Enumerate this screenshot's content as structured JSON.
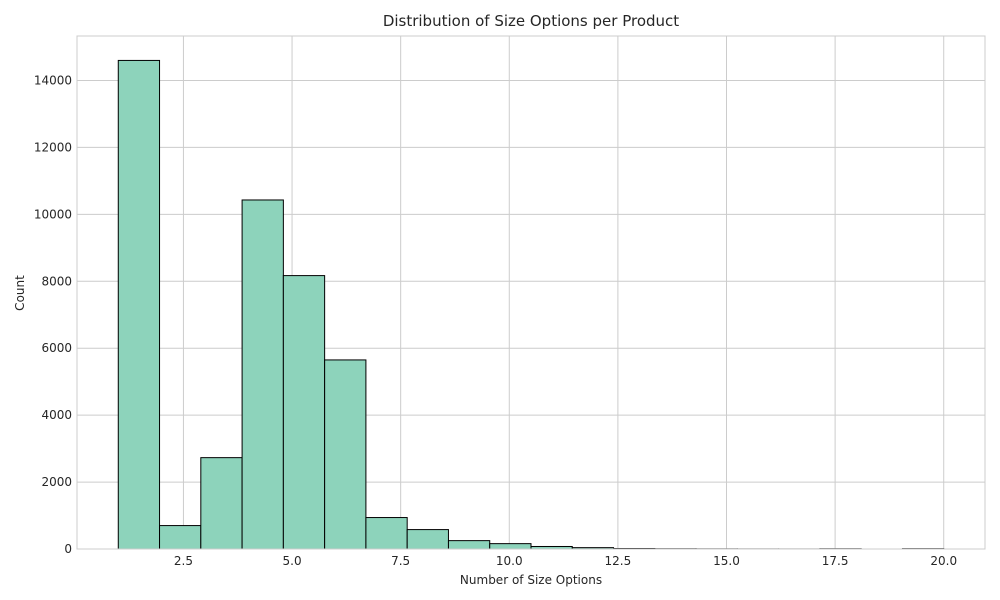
{
  "chart_data": {
    "type": "bar",
    "title": "Distribution of Size Options per Product",
    "xlabel": "Number of Size Options",
    "ylabel": "Count",
    "xlim": [
      0.05,
      20.95
    ],
    "ylim": [
      0,
      15330
    ],
    "x_ticks": [
      2.5,
      5.0,
      7.5,
      10.0,
      12.5,
      15.0,
      17.5,
      20.0
    ],
    "x_tick_labels": [
      "2.5",
      "5.0",
      "7.5",
      "10.0",
      "12.5",
      "15.0",
      "17.5",
      "20.0"
    ],
    "y_ticks": [
      0,
      2000,
      4000,
      6000,
      8000,
      10000,
      12000,
      14000
    ],
    "y_tick_labels": [
      "0",
      "2000",
      "4000",
      "6000",
      "8000",
      "10000",
      "12000",
      "14000"
    ],
    "grid": true,
    "bin_edges": [
      1.0,
      1.95,
      2.9,
      3.85,
      4.8,
      5.75,
      6.7,
      7.65,
      8.6,
      9.55,
      10.5,
      11.45,
      12.4,
      13.35,
      14.3,
      15.25,
      16.2,
      17.15,
      18.1,
      19.05,
      20.0
    ],
    "values": [
      14600,
      700,
      2730,
      10430,
      8170,
      5650,
      940,
      580,
      250,
      160,
      75,
      40,
      15,
      8,
      5,
      3,
      2,
      8,
      0,
      10
    ],
    "colors": {
      "bar_fill": "#8dd3bb",
      "bar_edge": "#000000",
      "grid": "#cccccc",
      "axes_edge": "#cccccc"
    }
  }
}
